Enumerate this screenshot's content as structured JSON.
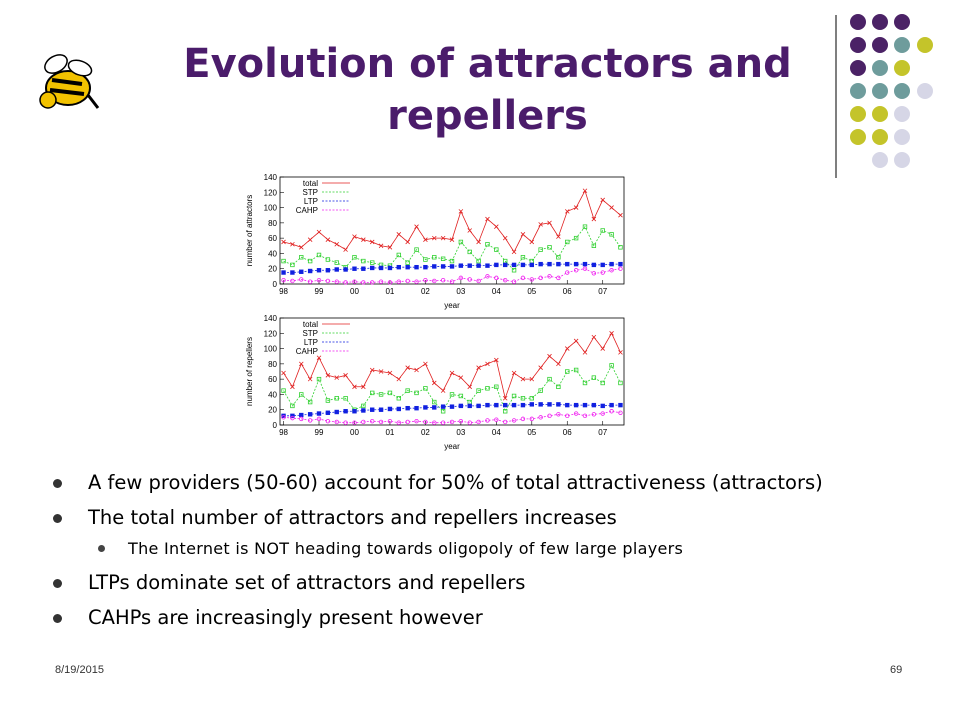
{
  "title": "Evolution of attractors and repellers",
  "bullets": [
    {
      "text": "A few providers (50-60) account for 50% of total attractiveness (attractors)",
      "children": []
    },
    {
      "text": "The total number of attractors and repellers increases",
      "children": [
        "The Internet is NOT heading towards oligopoly of few large players"
      ]
    },
    {
      "text": "LTPs dominate set of attractors and repellers",
      "children": []
    },
    {
      "text": "CAHPs are increasingly present however",
      "children": []
    }
  ],
  "footer": {
    "date": "8/19/2015",
    "page": 69
  },
  "chart_data": [
    {
      "type": "line",
      "xlabel": "year",
      "ylabel": "number of attractors",
      "x": [
        1998,
        1998.25,
        1998.5,
        1998.75,
        1999,
        1999.25,
        1999.5,
        1999.75,
        2000,
        2000.25,
        2000.5,
        2000.75,
        2001,
        2001.25,
        2001.5,
        2001.75,
        2002,
        2002.25,
        2002.5,
        2002.75,
        2003,
        2003.25,
        2003.5,
        2003.75,
        2004,
        2004.25,
        2004.5,
        2004.75,
        2005,
        2005.25,
        2005.5,
        2005.75,
        2006,
        2006.25,
        2006.5,
        2006.75,
        2007,
        2007.25,
        2007.5
      ],
      "xlim": [
        1997.9,
        2007.6
      ],
      "xticks": [
        {
          "value": 1998,
          "label": "98"
        },
        {
          "value": 1999,
          "label": "99"
        },
        {
          "value": 2000,
          "label": "00"
        },
        {
          "value": 2001,
          "label": "01"
        },
        {
          "value": 2002,
          "label": "02"
        },
        {
          "value": 2003,
          "label": "03"
        },
        {
          "value": 2004,
          "label": "04"
        },
        {
          "value": 2005,
          "label": "05"
        },
        {
          "value": 2006,
          "label": "06"
        },
        {
          "value": 2007,
          "label": "07"
        }
      ],
      "ylim": [
        0,
        140
      ],
      "yticks": [
        0,
        20,
        40,
        60,
        80,
        100,
        120,
        140
      ],
      "series": [
        {
          "name": "total",
          "color": "#e02020",
          "style": "solid",
          "marker": "x",
          "values": [
            55,
            52,
            48,
            58,
            68,
            58,
            52,
            45,
            62,
            58,
            55,
            50,
            48,
            65,
            55,
            75,
            58,
            60,
            60,
            58,
            95,
            70,
            55,
            85,
            75,
            60,
            42,
            65,
            55,
            78,
            80,
            62,
            95,
            100,
            122,
            85,
            110,
            100,
            90
          ]
        },
        {
          "name": "STP",
          "color": "#30d030",
          "style": "dashed",
          "marker": "square",
          "values": [
            30,
            25,
            35,
            30,
            38,
            32,
            28,
            22,
            35,
            30,
            28,
            25,
            24,
            38,
            28,
            45,
            32,
            35,
            33,
            30,
            55,
            42,
            30,
            52,
            45,
            30,
            18,
            35,
            30,
            45,
            48,
            35,
            55,
            60,
            75,
            50,
            70,
            65,
            48
          ]
        },
        {
          "name": "LTP",
          "color": "#1020e0",
          "style": "dashed",
          "marker": "filled",
          "values": [
            15,
            15,
            16,
            17,
            18,
            18,
            19,
            19,
            20,
            20,
            21,
            21,
            21,
            22,
            22,
            22,
            22,
            23,
            23,
            23,
            24,
            24,
            24,
            24,
            25,
            25,
            25,
            25,
            25,
            26,
            26,
            26,
            26,
            26,
            26,
            25,
            25,
            26,
            26
          ]
        },
        {
          "name": "CAHP",
          "color": "#f020f0",
          "style": "dashed",
          "marker": "circle",
          "values": [
            5,
            4,
            6,
            3,
            5,
            4,
            3,
            2,
            3,
            2,
            2,
            3,
            2,
            3,
            4,
            3,
            5,
            4,
            5,
            3,
            8,
            6,
            4,
            10,
            8,
            5,
            3,
            8,
            6,
            8,
            10,
            8,
            15,
            18,
            20,
            14,
            15,
            18,
            20
          ]
        }
      ]
    },
    {
      "type": "line",
      "xlabel": "year",
      "ylabel": "number of repellers",
      "x": [
        1998,
        1998.25,
        1998.5,
        1998.75,
        1999,
        1999.25,
        1999.5,
        1999.75,
        2000,
        2000.25,
        2000.5,
        2000.75,
        2001,
        2001.25,
        2001.5,
        2001.75,
        2002,
        2002.25,
        2002.5,
        2002.75,
        2003,
        2003.25,
        2003.5,
        2003.75,
        2004,
        2004.25,
        2004.5,
        2004.75,
        2005,
        2005.25,
        2005.5,
        2005.75,
        2006,
        2006.25,
        2006.5,
        2006.75,
        2007,
        2007.25,
        2007.5
      ],
      "xlim": [
        1997.9,
        2007.6
      ],
      "xticks": [
        {
          "value": 1998,
          "label": "98"
        },
        {
          "value": 1999,
          "label": "99"
        },
        {
          "value": 2000,
          "label": "00"
        },
        {
          "value": 2001,
          "label": "01"
        },
        {
          "value": 2002,
          "label": "02"
        },
        {
          "value": 2003,
          "label": "03"
        },
        {
          "value": 2004,
          "label": "04"
        },
        {
          "value": 2005,
          "label": "05"
        },
        {
          "value": 2006,
          "label": "06"
        },
        {
          "value": 2007,
          "label": "07"
        }
      ],
      "ylim": [
        0,
        140
      ],
      "yticks": [
        0,
        20,
        40,
        60,
        80,
        100,
        120,
        140
      ],
      "series": [
        {
          "name": "total",
          "color": "#e02020",
          "style": "solid",
          "marker": "x",
          "values": [
            68,
            50,
            80,
            60,
            88,
            65,
            62,
            65,
            50,
            50,
            72,
            70,
            68,
            60,
            75,
            72,
            80,
            55,
            45,
            68,
            62,
            50,
            75,
            80,
            85,
            35,
            68,
            60,
            60,
            75,
            90,
            80,
            100,
            110,
            95,
            115,
            100,
            120,
            95
          ]
        },
        {
          "name": "STP",
          "color": "#30d030",
          "style": "dashed",
          "marker": "square",
          "values": [
            45,
            25,
            40,
            30,
            60,
            32,
            35,
            35,
            20,
            25,
            42,
            40,
            42,
            35,
            45,
            42,
            48,
            30,
            18,
            40,
            38,
            30,
            45,
            48,
            50,
            18,
            38,
            35,
            35,
            45,
            60,
            50,
            70,
            72,
            55,
            62,
            55,
            78,
            55
          ]
        },
        {
          "name": "LTP",
          "color": "#1020e0",
          "style": "dashed",
          "marker": "filled",
          "values": [
            12,
            12,
            13,
            14,
            15,
            16,
            17,
            18,
            18,
            19,
            20,
            20,
            21,
            21,
            22,
            22,
            23,
            23,
            24,
            24,
            25,
            25,
            25,
            26,
            26,
            26,
            26,
            26,
            27,
            27,
            27,
            27,
            26,
            26,
            26,
            26,
            25,
            26,
            26
          ]
        },
        {
          "name": "CAHP",
          "color": "#f020f0",
          "style": "dashed",
          "marker": "circle",
          "values": [
            10,
            9,
            8,
            6,
            8,
            5,
            4,
            3,
            3,
            4,
            5,
            4,
            5,
            3,
            4,
            5,
            4,
            3,
            3,
            4,
            5,
            3,
            4,
            6,
            7,
            4,
            6,
            8,
            8,
            10,
            12,
            14,
            12,
            15,
            12,
            14,
            15,
            18,
            16
          ]
        }
      ]
    }
  ]
}
